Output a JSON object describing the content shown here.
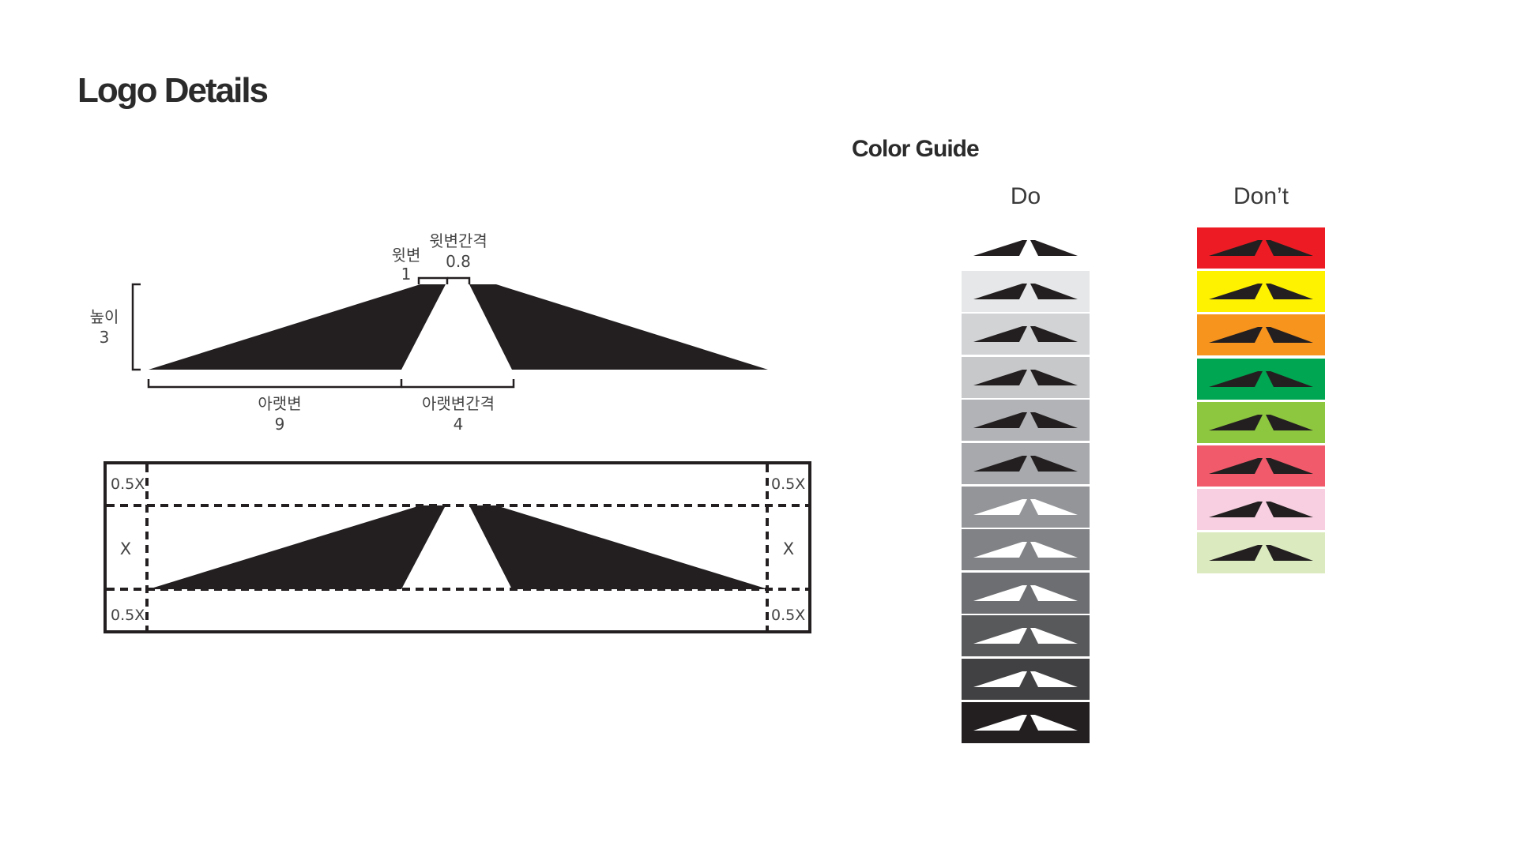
{
  "page": {
    "title": "Logo Details"
  },
  "logo_details": {
    "top_side": {
      "label": "윗변",
      "value": "1"
    },
    "top_gap": {
      "label": "윗변간격",
      "value": "0.8"
    },
    "height": {
      "label": "높이",
      "value": "3"
    },
    "bottom_side": {
      "label": "아랫변",
      "value": "9"
    },
    "bottom_gap": {
      "label": "아랫변간격",
      "value": "4"
    }
  },
  "clear_space": {
    "top_left": "0.5X",
    "top_right": "0.5X",
    "bottom_left": "0.5X",
    "bottom_right": "0.5X",
    "mid_left": "X",
    "mid_right": "X"
  },
  "color_guide": {
    "title": "Color Guide",
    "do_label": "Do",
    "dont_label": "Don’t",
    "do_swatches": [
      {
        "bg": "#ffffff",
        "logo": "#231f20"
      },
      {
        "bg": "#e6e7e8",
        "logo": "#231f20"
      },
      {
        "bg": "#d1d3d4",
        "logo": "#231f20"
      },
      {
        "bg": "#c7c8ca",
        "logo": "#231f20"
      },
      {
        "bg": "#b1b3b6",
        "logo": "#231f20"
      },
      {
        "bg": "#a7a9ac",
        "logo": "#231f20"
      },
      {
        "bg": "#939598",
        "logo": "#ffffff"
      },
      {
        "bg": "#808285",
        "logo": "#ffffff"
      },
      {
        "bg": "#6d6e71",
        "logo": "#ffffff"
      },
      {
        "bg": "#58595b",
        "logo": "#ffffff"
      },
      {
        "bg": "#414042",
        "logo": "#ffffff"
      },
      {
        "bg": "#231f20",
        "logo": "#ffffff"
      }
    ],
    "dont_swatches": [
      {
        "bg": "#ed1c24",
        "logo": "#231f20"
      },
      {
        "bg": "#fff200",
        "logo": "#231f20"
      },
      {
        "bg": "#f7941d",
        "logo": "#231f20"
      },
      {
        "bg": "#00a651",
        "logo": "#231f20"
      },
      {
        "bg": "#8dc63f",
        "logo": "#231f20"
      },
      {
        "bg": "#f15a6a",
        "logo": "#231f20"
      },
      {
        "bg": "#f8cfe0",
        "logo": "#231f20"
      },
      {
        "bg": "#dcebbf",
        "logo": "#231f20"
      }
    ]
  }
}
